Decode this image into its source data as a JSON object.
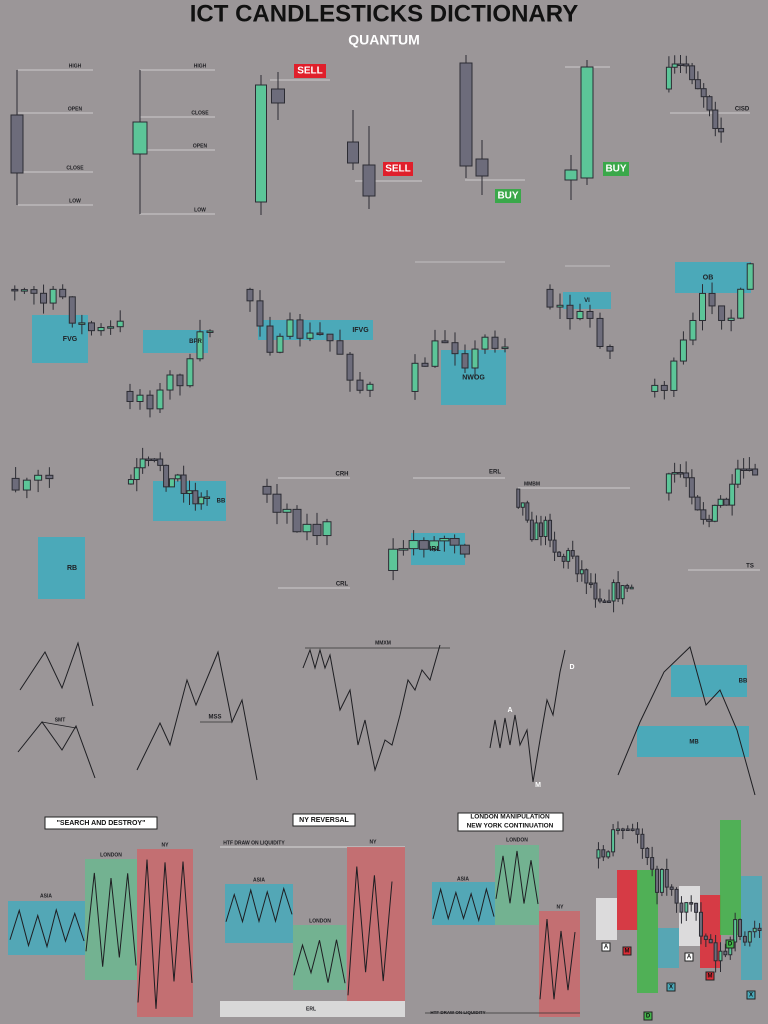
{
  "header": {
    "title": "ICT CANDLESTICKS DICTIONARY",
    "subtitle": "QUANTUM"
  },
  "row1": {
    "anatomy_bear": [
      "HIGH",
      "OPEN",
      "CLOSE",
      "LOW"
    ],
    "anatomy_bull": [
      "HIGH",
      "CLOSE",
      "OPEN",
      "LOW"
    ],
    "signals": [
      "SELL",
      "SELL",
      "BUY",
      "BUY"
    ],
    "cisd": "CISD"
  },
  "row2": [
    "FVG",
    "BPR",
    "IFVG",
    "NWOG",
    "VI",
    "OB"
  ],
  "row3": [
    "RB",
    "BB",
    "CRH",
    "CRL",
    "ERL",
    "IRL",
    "MMBM",
    "TS"
  ],
  "row4": [
    "SMT",
    "MSS",
    "MMXM",
    "A",
    "D",
    "M",
    "BB",
    "MB"
  ],
  "row5": {
    "search_destroy": {
      "title": "\"SEARCH AND DESTROY\"",
      "sessions": [
        "ASIA",
        "LONDON",
        "NY"
      ]
    },
    "ny_reversal": {
      "title": "NY REVERSAL",
      "draw": "HTF DRAW ON LIQUIDITY",
      "sessions": [
        "ASIA",
        "LONDON",
        "NY"
      ],
      "erl": "ERL"
    },
    "london_manipulation": {
      "title": [
        "LONDON MANIPULATION",
        "NEW YORK CONTINUATION"
      ],
      "sessions": [
        "ASIA",
        "LONDON",
        "NY"
      ],
      "draw": "HTF DRAW ON LIQUIDITY"
    },
    "amd": [
      "A",
      "M",
      "D",
      "X",
      "A",
      "M",
      "D",
      "X"
    ]
  }
}
